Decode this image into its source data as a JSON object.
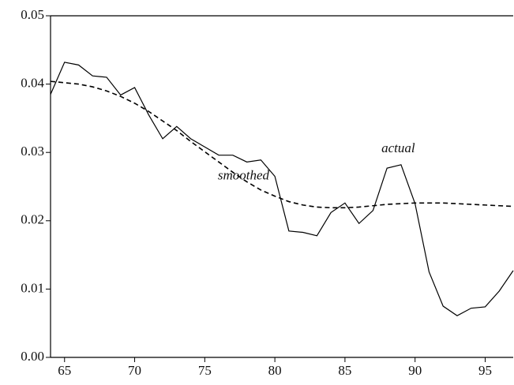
{
  "chart_data": {
    "type": "line",
    "x": [
      64,
      65,
      66,
      67,
      68,
      69,
      70,
      71,
      72,
      73,
      74,
      75,
      76,
      77,
      78,
      79,
      80,
      81,
      82,
      83,
      84,
      85,
      86,
      87,
      88,
      89,
      90,
      91,
      92,
      93,
      94,
      95,
      96,
      97
    ],
    "series": [
      {
        "name": "actual",
        "color": "#000000",
        "linestyle": "solid",
        "values": [
          0.0385,
          0.0432,
          0.0428,
          0.0412,
          0.041,
          0.0384,
          0.0395,
          0.0355,
          0.032,
          0.0338,
          0.032,
          0.0308,
          0.0296,
          0.0296,
          0.0286,
          0.0289,
          0.0265,
          0.0185,
          0.0183,
          0.0178,
          0.0212,
          0.0226,
          0.0196,
          0.0215,
          0.0277,
          0.0282,
          0.0225,
          0.0125,
          0.0075,
          0.0061,
          0.0072,
          0.0074,
          0.0097,
          0.0127
        ]
      },
      {
        "name": "smoothed",
        "color": "#000000",
        "linestyle": "dashed",
        "values": [
          0.0404,
          0.0402,
          0.04,
          0.0396,
          0.039,
          0.0382,
          0.0372,
          0.036,
          0.0346,
          0.0332,
          0.0316,
          0.0301,
          0.0286,
          0.0271,
          0.0257,
          0.0245,
          0.0236,
          0.0228,
          0.0223,
          0.022,
          0.0219,
          0.0219,
          0.022,
          0.0222,
          0.0224,
          0.0225,
          0.0226,
          0.0226,
          0.0226,
          0.0225,
          0.0224,
          0.0223,
          0.0222,
          0.0221
        ]
      }
    ],
    "xlim": [
      64,
      97
    ],
    "xticks": [
      65,
      70,
      75,
      80,
      85,
      90,
      95
    ],
    "ylim": [
      0,
      0.05
    ],
    "yticks": [
      {
        "value": 0,
        "label": "0.00"
      },
      0.01,
      0.02,
      0.03,
      0.04,
      0.05
    ],
    "grid": false
  }
}
